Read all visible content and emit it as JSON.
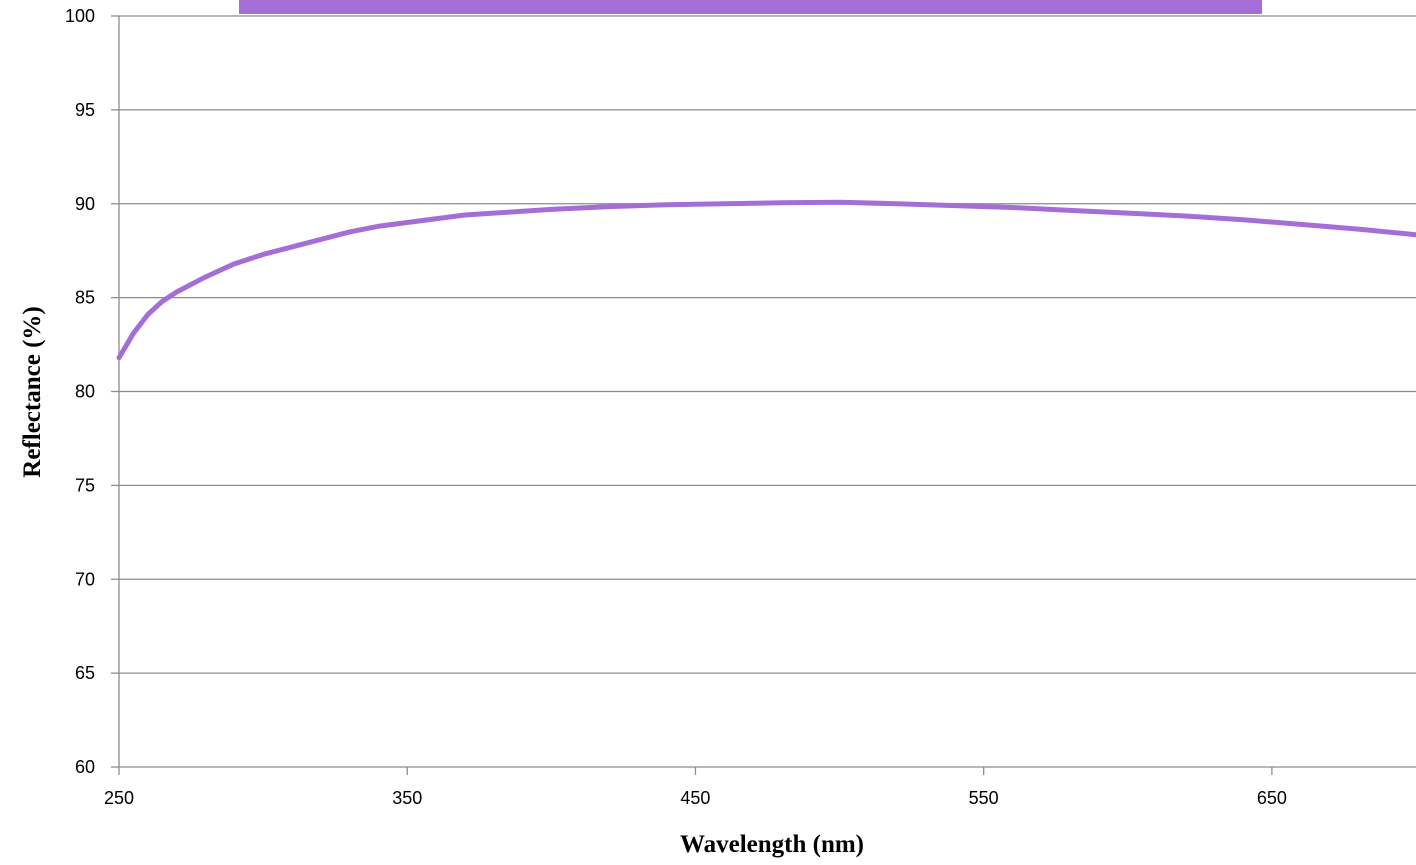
{
  "chart_data": {
    "type": "line",
    "title": "",
    "xlabel": "Wavelength (nm)",
    "ylabel": "Reflectance (%)",
    "xlim": [
      250,
      700
    ],
    "ylim": [
      60,
      100
    ],
    "xticks": [
      250,
      350,
      450,
      550,
      650
    ],
    "yticks": [
      60,
      65,
      70,
      75,
      80,
      85,
      90,
      95,
      100
    ],
    "grid": "horizontal",
    "legend": "top",
    "series": [
      {
        "color": "#a46ed6",
        "x": [
          250,
          255,
          260,
          265,
          270,
          280,
          290,
          300,
          310,
          320,
          330,
          340,
          350,
          360,
          370,
          380,
          390,
          400,
          420,
          440,
          460,
          480,
          500,
          520,
          540,
          560,
          580,
          600,
          620,
          640,
          660,
          680,
          700
        ],
        "y": [
          81.8,
          83.1,
          84.1,
          84.8,
          85.3,
          86.1,
          86.8,
          87.3,
          87.7,
          88.1,
          88.5,
          88.8,
          89.0,
          89.2,
          89.4,
          89.5,
          89.6,
          89.7,
          89.85,
          89.95,
          90.0,
          90.05,
          90.08,
          90.0,
          89.9,
          89.8,
          89.65,
          89.5,
          89.35,
          89.15,
          88.9,
          88.65,
          88.35
        ]
      }
    ]
  }
}
